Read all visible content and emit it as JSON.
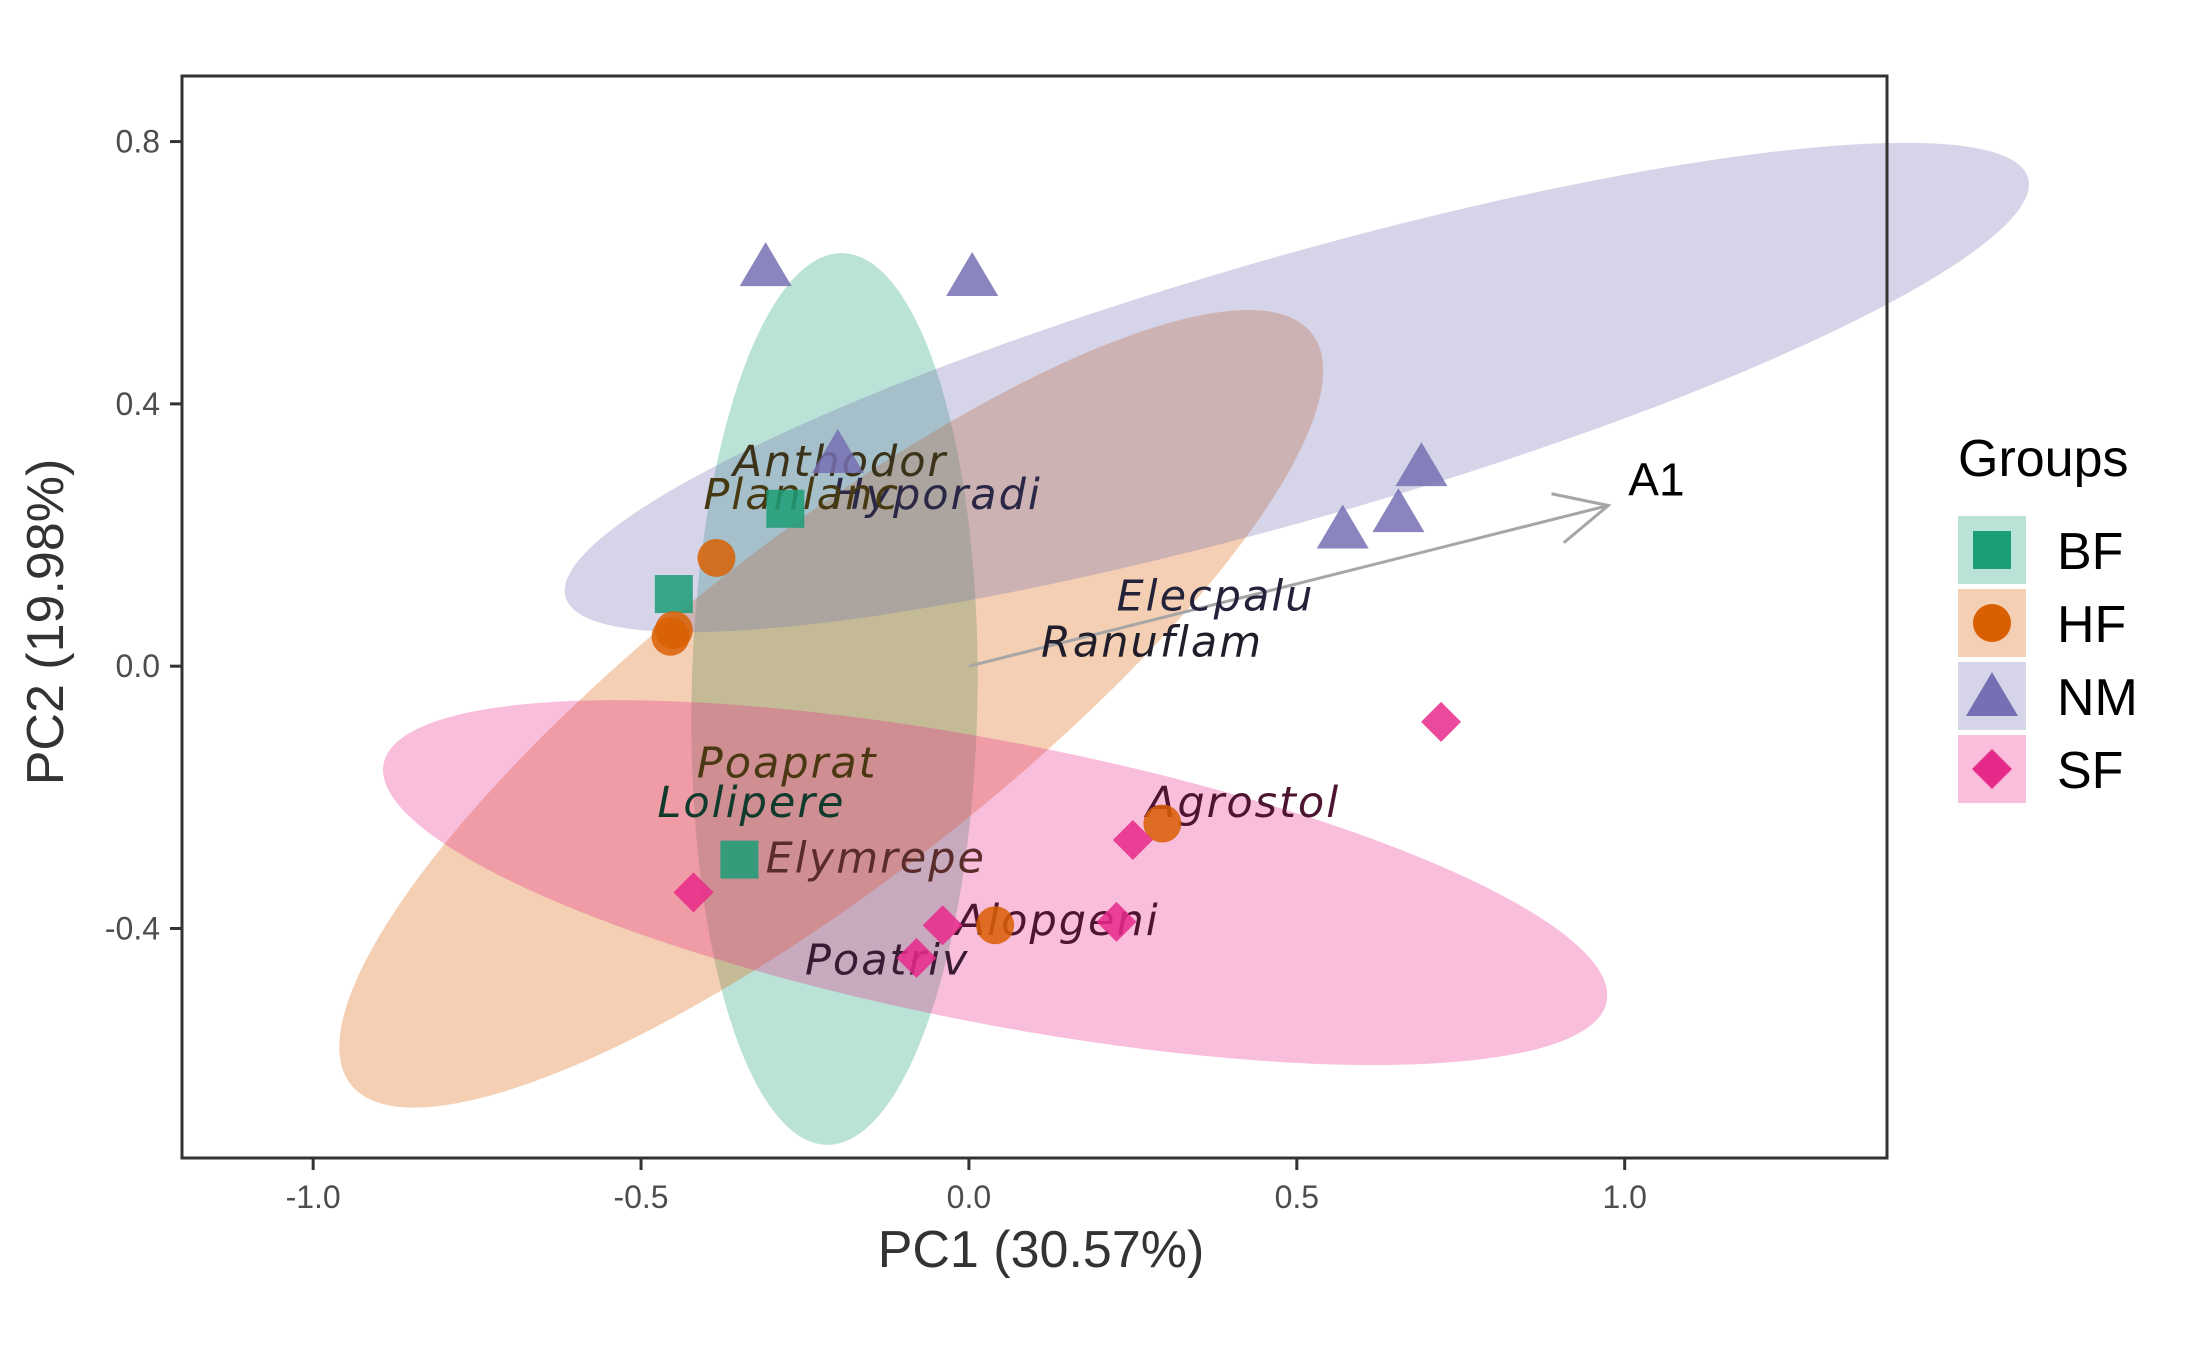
{
  "chart_data": {
    "type": "scatter",
    "xlabel": "PC1 (30.57%)",
    "ylabel": "PC2 (19.98%)",
    "xlim": [
      -1.2,
      1.4
    ],
    "ylim": [
      -0.75,
      0.9
    ],
    "x_ticks": [
      -1.0,
      -0.5,
      0.0,
      0.5,
      1.0
    ],
    "x_tick_labels": [
      "-1.0",
      "-0.5",
      "0.0",
      "0.5",
      "1.0"
    ],
    "y_ticks": [
      -0.4,
      0.0,
      0.4,
      0.8
    ],
    "y_tick_labels": [
      "-0.4",
      "0.0",
      "0.4",
      "0.8"
    ],
    "grid": false,
    "legend": {
      "title": "Groups",
      "position": "right"
    },
    "groups": [
      {
        "name": "BF",
        "shape": "square",
        "color": "#1B9E77",
        "points": [
          [
            -0.28,
            0.24
          ],
          [
            -0.45,
            0.11
          ],
          [
            -0.35,
            -0.295
          ]
        ],
        "ellipse": {
          "cx": -0.205,
          "cy": -0.05,
          "rx": 0.218,
          "ry": 0.68,
          "angle_deg": 1
        }
      },
      {
        "name": "HF",
        "shape": "circle",
        "color": "#D95F02",
        "points": [
          [
            -0.385,
            0.165
          ],
          [
            -0.45,
            0.055
          ],
          [
            -0.455,
            0.045
          ],
          [
            0.04,
            -0.395
          ],
          [
            0.295,
            -0.24
          ]
        ],
        "ellipse": {
          "cx": -0.21,
          "cy": -0.065,
          "rx": 0.93,
          "ry": 0.26,
          "angle_deg": -38
        }
      },
      {
        "name": "NM",
        "shape": "triangle",
        "color": "#7570B3",
        "points": [
          [
            -0.31,
            0.61
          ],
          [
            0.005,
            0.595
          ],
          [
            -0.2,
            0.325
          ],
          [
            0.57,
            0.21
          ],
          [
            0.655,
            0.235
          ],
          [
            0.69,
            0.305
          ]
        ],
        "ellipse": {
          "cx": 0.5,
          "cy": 0.425,
          "rx": 1.16,
          "ry": 0.2,
          "angle_deg": -16
        }
      },
      {
        "name": "SF",
        "shape": "diamond",
        "color": "#E7298A",
        "points": [
          [
            0.72,
            -0.085
          ],
          [
            0.25,
            -0.265
          ],
          [
            0.225,
            -0.39
          ],
          [
            -0.04,
            -0.395
          ],
          [
            -0.08,
            -0.445
          ],
          [
            -0.42,
            -0.345
          ]
        ],
        "ellipse": {
          "cx": 0.04,
          "cy": -0.33,
          "rx": 0.95,
          "ry": 0.215,
          "angle_deg": 11
        }
      }
    ],
    "species": [
      {
        "name": "Anthodor",
        "x": -0.36,
        "y": 0.29,
        "color": "#3b3219"
      },
      {
        "name": "Hyporadi",
        "x": -0.21,
        "y": 0.24,
        "color": "#2a2846"
      },
      {
        "name": "Planlanc",
        "x": -0.405,
        "y": 0.24,
        "color": "#473a12"
      },
      {
        "name": "Elecpalu",
        "x": 0.225,
        "y": 0.085,
        "color": "#24223a"
      },
      {
        "name": "Ranuflam",
        "x": 0.11,
        "y": 0.015,
        "color": "#1f1e2a"
      },
      {
        "name": "Poaprat",
        "x": -0.415,
        "y": -0.17,
        "color": "#4a3812"
      },
      {
        "name": "Lolipere",
        "x": -0.475,
        "y": -0.23,
        "color": "#0f3a2c"
      },
      {
        "name": "Elymrepe",
        "x": -0.31,
        "y": -0.315,
        "color": "#5a2d2a"
      },
      {
        "name": "Agrostol",
        "x": 0.27,
        "y": -0.23,
        "color": "#4d1530"
      },
      {
        "name": "Alopgeni",
        "x": -0.02,
        "y": -0.41,
        "color": "#4d1530"
      },
      {
        "name": "Poatriv",
        "x": -0.25,
        "y": -0.47,
        "color": "#3a1a35"
      }
    ],
    "vectors": [
      {
        "name": "A1",
        "x0": 0.0,
        "y0": 0.0,
        "x1": 0.975,
        "y1": 0.245,
        "color": "#a6a6a6"
      }
    ]
  }
}
